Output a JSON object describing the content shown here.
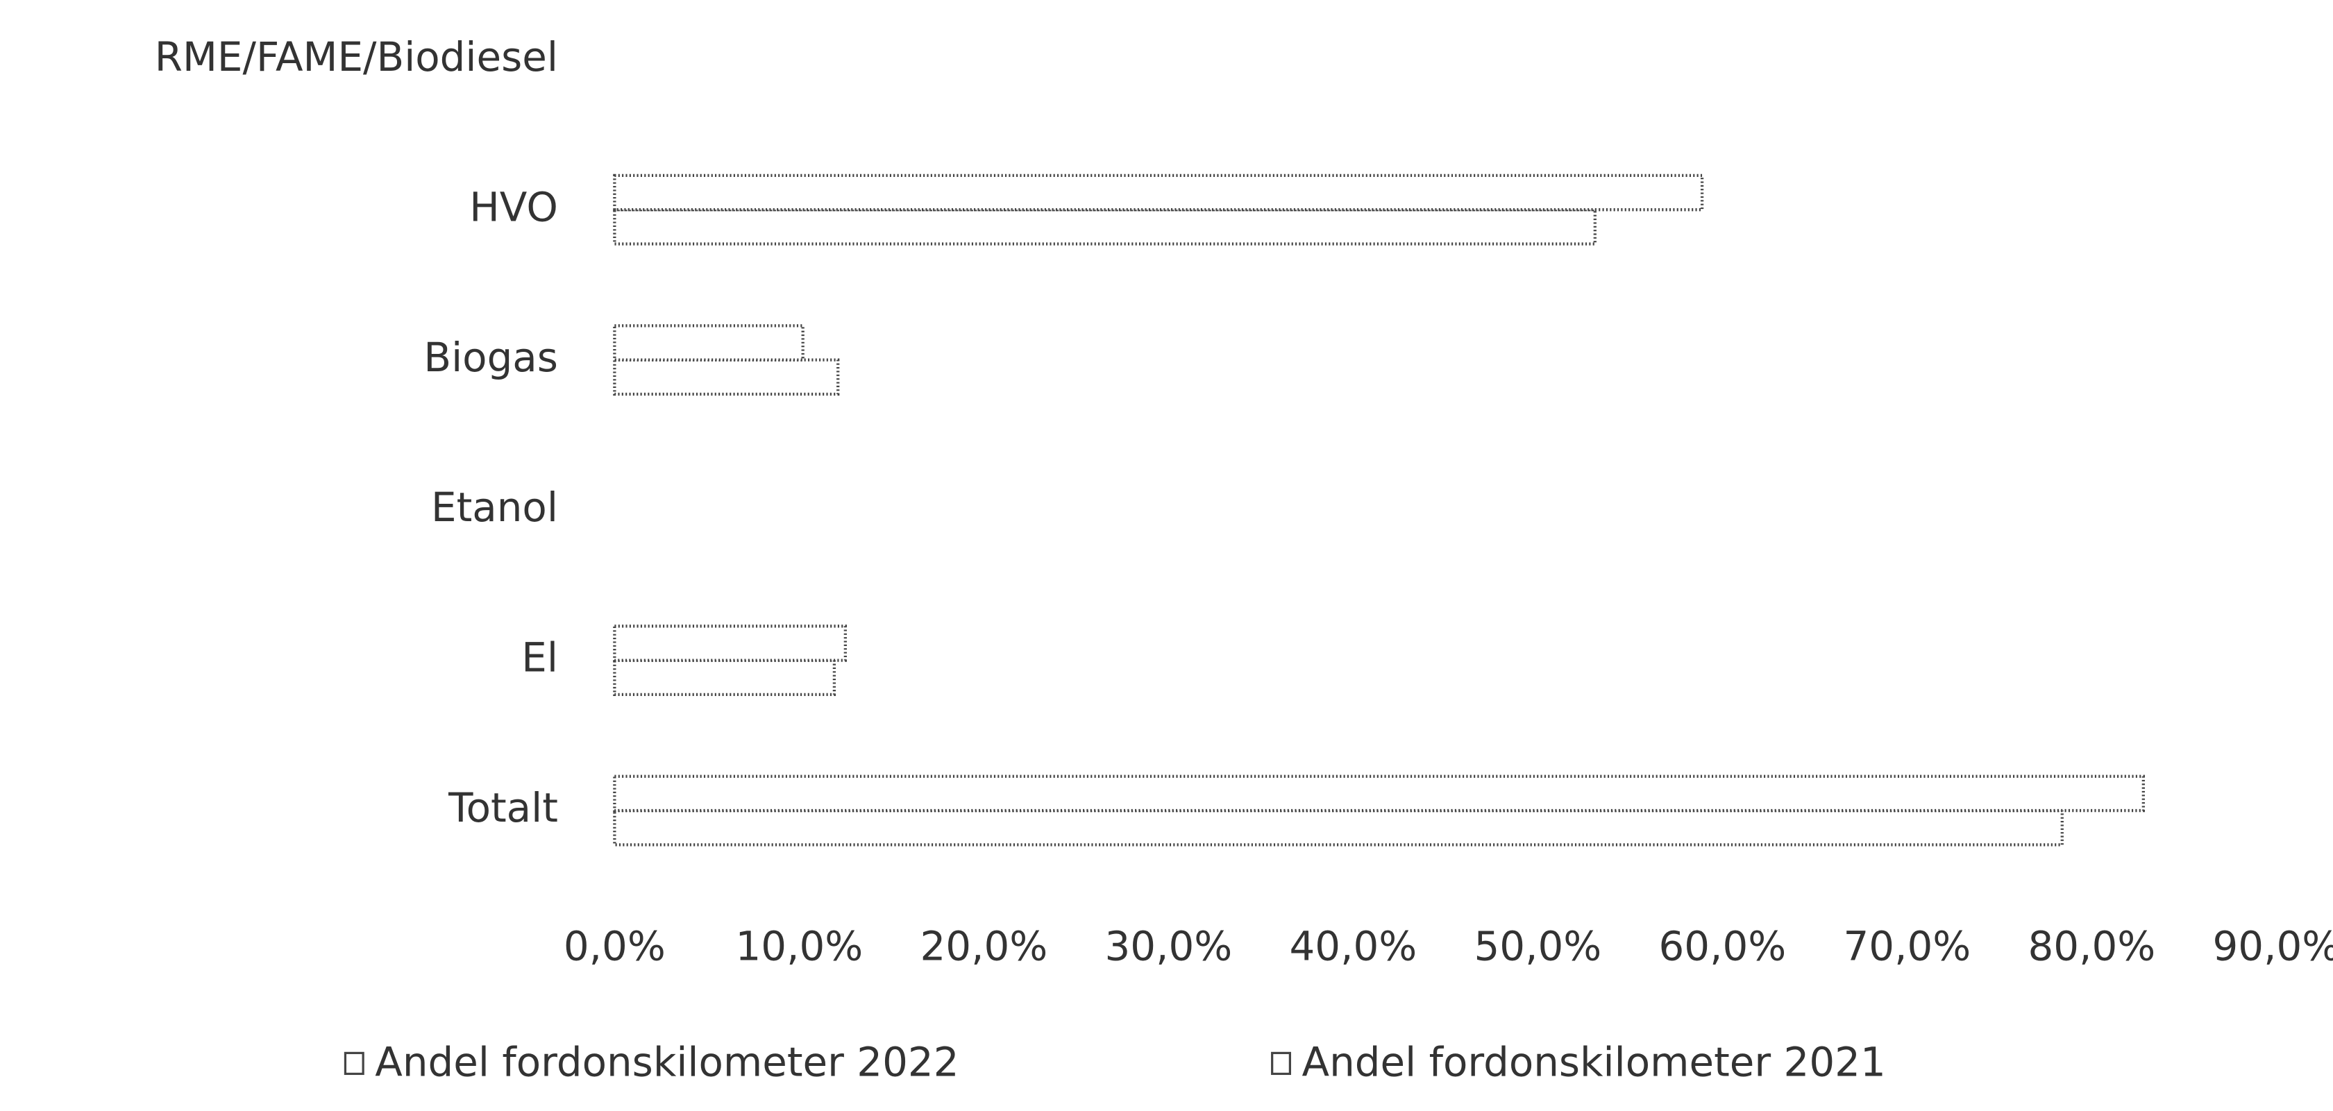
{
  "chart_data": {
    "type": "bar",
    "orientation": "horizontal",
    "categories": [
      "RME/FAME/Biodiesel",
      "HVO",
      "Biogas",
      "Etanol",
      "El",
      "Totalt"
    ],
    "series": [
      {
        "name": "Andel fordonskilometer 2022",
        "color": "#ffffff",
        "values": [
          0,
          53.1,
          12.1,
          0,
          11.9,
          78.4
        ]
      },
      {
        "name": "Andel fordonskilometer 2021",
        "color": "#ffffff",
        "values": [
          0,
          58.9,
          10.2,
          0,
          12.5,
          82.8
        ]
      }
    ],
    "xlim": [
      0,
      90
    ],
    "xticks": [
      {
        "value": 0,
        "label": "0,0%"
      },
      {
        "value": 10,
        "label": "10,0%"
      },
      {
        "value": 20,
        "label": "20,0%"
      },
      {
        "value": 30,
        "label": "30,0%"
      },
      {
        "value": 40,
        "label": "40,0%"
      },
      {
        "value": 50,
        "label": "50,0%"
      },
      {
        "value": 60,
        "label": "60,0%"
      },
      {
        "value": 70,
        "label": "70,0%"
      },
      {
        "value": 80,
        "label": "80,0%"
      },
      {
        "value": 90,
        "label": "90,0%"
      }
    ],
    "legend": "bottom"
  }
}
